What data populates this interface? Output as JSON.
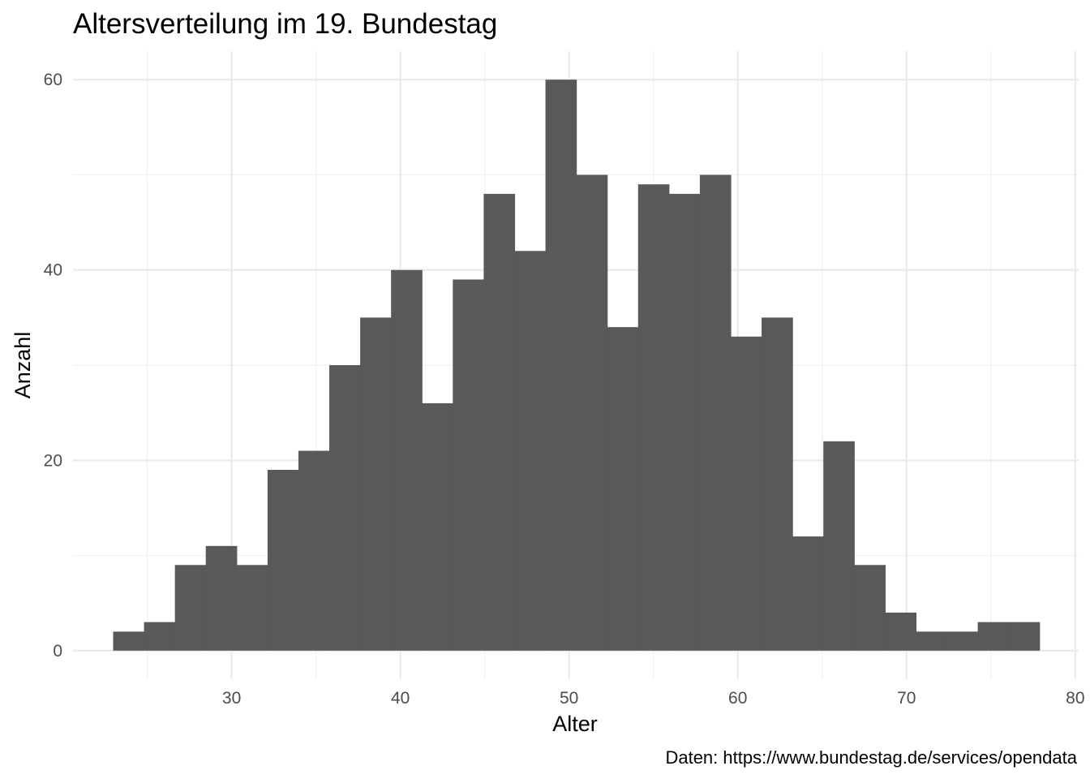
{
  "chart_data": {
    "type": "bar",
    "title": "Altersverteilung im 19. Bundestag",
    "xlabel": "Alter",
    "ylabel": "Anzahl",
    "caption": "Daten: https://www.bundestag.de/services/opendata",
    "xlim": [
      20.6,
      80.2
    ],
    "ylim": [
      -3,
      63
    ],
    "x_ticks": [
      30,
      40,
      50,
      60,
      70,
      80
    ],
    "x_minor_ticks": [
      25,
      35,
      45,
      55,
      65,
      75
    ],
    "y_ticks": [
      0,
      20,
      40,
      60
    ],
    "y_minor_ticks": [
      10,
      30,
      50
    ],
    "grid": true,
    "bin_width": 1.83,
    "bin_start": 22.98,
    "bar_color": "#595959",
    "values": [
      2,
      3,
      9,
      11,
      9,
      19,
      21,
      30,
      35,
      40,
      26,
      39,
      48,
      42,
      60,
      50,
      34,
      49,
      48,
      50,
      33,
      35,
      12,
      22,
      9,
      4,
      2,
      2,
      3,
      3
    ]
  }
}
